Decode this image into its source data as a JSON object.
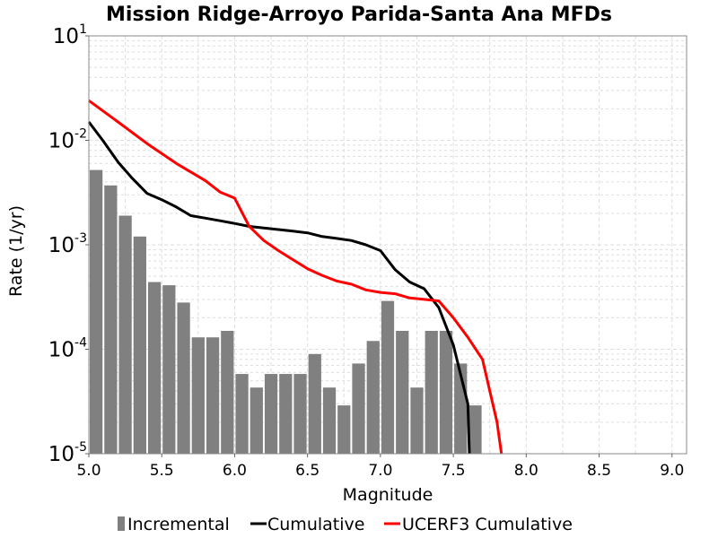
{
  "chart_data": {
    "type": "bar",
    "title": "Mission Ridge-Arroyo Parida-Santa Ana MFDs",
    "xlabel": "Magnitude",
    "ylabel": "Rate (1/yr)",
    "xlim": [
      5.0,
      9.1
    ],
    "ylim": [
      1e-05,
      0.1
    ],
    "yscale": "log",
    "grid": true,
    "legend_position": "bottom",
    "xticks": [
      "5.0",
      "5.5",
      "6.0",
      "6.5",
      "7.0",
      "7.5",
      "8.0",
      "8.5",
      "9.0"
    ],
    "yticks": [
      {
        "base": "10",
        "exp": "1"
      },
      {
        "base": "10",
        "exp": "-2"
      },
      {
        "base": "10",
        "exp": "-3"
      },
      {
        "base": "10",
        "exp": "-4"
      },
      {
        "base": "10",
        "exp": "-5"
      }
    ],
    "series": [
      {
        "name": "Incremental",
        "kind": "bar",
        "color": "#808080",
        "x": [
          5.05,
          5.15,
          5.25,
          5.35,
          5.45,
          5.55,
          5.65,
          5.75,
          5.85,
          5.95,
          6.05,
          6.15,
          6.25,
          6.35,
          6.45,
          6.55,
          6.65,
          6.75,
          6.85,
          6.95,
          7.05,
          7.15,
          7.25,
          7.35,
          7.45,
          7.55,
          7.65
        ],
        "values": [
          0.0052,
          0.0037,
          0.0019,
          0.0012,
          0.00044,
          0.00041,
          0.00028,
          0.00013,
          0.00013,
          0.00015,
          5.8e-05,
          4.3e-05,
          5.8e-05,
          5.8e-05,
          5.8e-05,
          9e-05,
          4.3e-05,
          2.9e-05,
          7.3e-05,
          0.00012,
          0.00029,
          0.00015,
          4.3e-05,
          0.00015,
          0.00015,
          7.3e-05,
          2.9e-05
        ]
      },
      {
        "name": "Cumulative",
        "kind": "line",
        "color": "#000000",
        "x": [
          5.0,
          5.1,
          5.2,
          5.3,
          5.4,
          5.5,
          5.6,
          5.7,
          5.8,
          5.9,
          6.0,
          6.1,
          6.2,
          6.3,
          6.4,
          6.5,
          6.6,
          6.7,
          6.8,
          6.9,
          7.0,
          7.1,
          7.2,
          7.3,
          7.4,
          7.5,
          7.6,
          7.61
        ],
        "values": [
          0.015,
          0.0098,
          0.0062,
          0.0043,
          0.0031,
          0.0027,
          0.0023,
          0.0019,
          0.0018,
          0.0017,
          0.0016,
          0.0015,
          0.00145,
          0.0014,
          0.00135,
          0.0013,
          0.0012,
          0.00115,
          0.0011,
          0.001,
          0.00088,
          0.00058,
          0.00044,
          0.00038,
          0.00025,
          0.00011,
          3e-05,
          1e-05
        ]
      },
      {
        "name": "UCERF3 Cumulative",
        "kind": "line",
        "color": "#ff0000",
        "x": [
          5.0,
          5.2,
          5.4,
          5.6,
          5.8,
          5.9,
          6.0,
          6.1,
          6.2,
          6.3,
          6.4,
          6.5,
          6.6,
          6.7,
          6.8,
          6.9,
          7.0,
          7.1,
          7.2,
          7.3,
          7.4,
          7.5,
          7.6,
          7.7,
          7.8,
          7.83
        ],
        "values": [
          0.024,
          0.015,
          0.0093,
          0.006,
          0.0041,
          0.0032,
          0.0028,
          0.0015,
          0.0011,
          0.00088,
          0.00072,
          0.00059,
          0.00051,
          0.00045,
          0.00042,
          0.00037,
          0.00035,
          0.00034,
          0.00031,
          0.0003,
          0.00029,
          0.0002,
          0.00013,
          8e-05,
          2e-05,
          1e-05
        ]
      }
    ]
  }
}
